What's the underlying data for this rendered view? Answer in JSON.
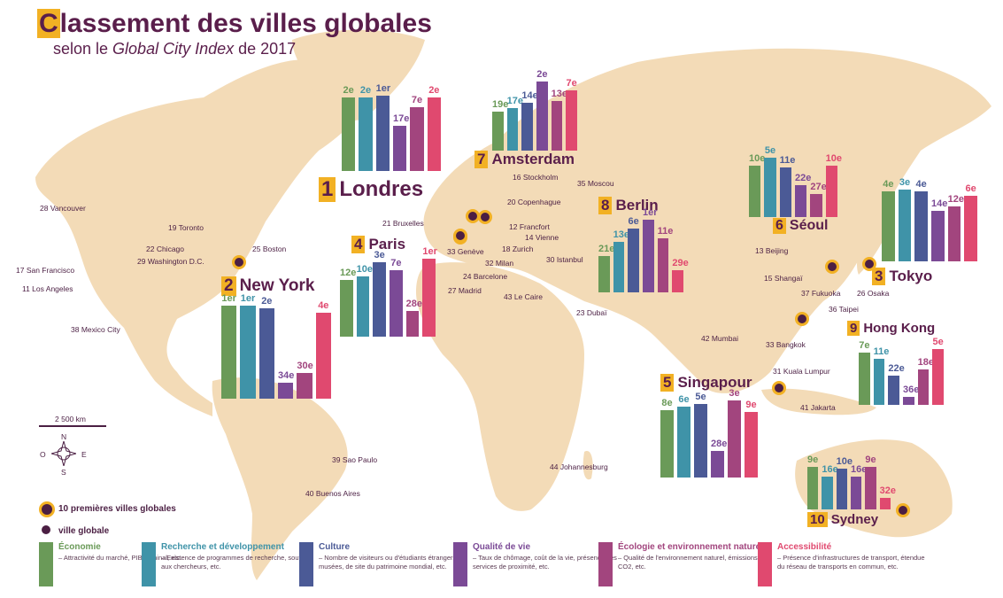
{
  "title": {
    "cap": "C",
    "rest": "lassement des villes globales"
  },
  "subtitle": {
    "pre": "selon le ",
    "italic": "Global City Index",
    "post": " de 2017"
  },
  "colors": {
    "land": "#f3dbb7",
    "sea": "#ffffff",
    "economy": "#6a9a58",
    "research": "#3f93a8",
    "culture": "#4b5a96",
    "quality": "#7b4a96",
    "ecology": "#a2457e",
    "access": "#e0496f",
    "highlight": "#f2b124",
    "dot": "#4b1f43"
  },
  "top_cities": [
    {
      "rank": "1",
      "name": "Londres",
      "ranks": [
        "2e",
        "2e",
        "1er",
        "17e",
        "7e",
        "2e"
      ]
    },
    {
      "rank": "2",
      "name": "New York",
      "ranks": [
        "1er",
        "1er",
        "2e",
        "34e",
        "30e",
        "4e"
      ]
    },
    {
      "rank": "3",
      "name": "Tokyo",
      "ranks": [
        "4e",
        "3e",
        "4e",
        "14e",
        "12e",
        "6e"
      ]
    },
    {
      "rank": "4",
      "name": "Paris",
      "ranks": [
        "12e",
        "10e",
        "3e",
        "7e",
        "28e",
        "1er"
      ]
    },
    {
      "rank": "5",
      "name": "Singapour",
      "ranks": [
        "8e",
        "6e",
        "5e",
        "28e",
        "3e",
        "9e"
      ]
    },
    {
      "rank": "6",
      "name": "Séoul",
      "ranks": [
        "10e",
        "5e",
        "11e",
        "22e",
        "27e",
        "10e"
      ]
    },
    {
      "rank": "7",
      "name": "Amsterdam",
      "ranks": [
        "19e",
        "17e",
        "14e",
        "2e",
        "13e",
        "7e"
      ]
    },
    {
      "rank": "8",
      "name": "Berlin",
      "ranks": [
        "21e",
        "13e",
        "6e",
        "1er",
        "11e",
        "29e"
      ]
    },
    {
      "rank": "9",
      "name": "Hong Kong",
      "ranks": [
        "7e",
        "11e",
        "22e",
        "36e",
        "18e",
        "5e"
      ]
    },
    {
      "rank": "10",
      "name": "Sydney",
      "ranks": [
        "9e",
        "16e",
        "10e",
        "16e",
        "9e",
        "32e"
      ]
    }
  ],
  "other_cities": [
    "28 Vancouver",
    "19 Toronto",
    "22 Chicago",
    "25 Boston",
    "29 Washington D.C.",
    "17 San Francisco",
    "11 Los Angeles",
    "38 Mexico City",
    "39 Sao Paulo",
    "40 Buenos Aires",
    "21 Bruxelles",
    "16 Stockholm",
    "20 Copenhague",
    "35 Moscou",
    "12 Francfort",
    "14 Vienne",
    "18 Zurich",
    "33 Genève",
    "32 Milan",
    "30 Istanbul",
    "24 Barcelone",
    "27 Madrid",
    "43 Le Caire",
    "23 Dubaï",
    "44 Johannesburg",
    "42 Mumbai",
    "33 Bangkok",
    "31 Kuala Lumpur",
    "41 Jakarta",
    "13 Beijing",
    "15 Shangaï",
    "37 Fukuoka",
    "26 Osaka",
    "36 Taipei"
  ],
  "scale": "2 500 km",
  "compass": {
    "n": "N",
    "s": "S",
    "e": "E",
    "o": "O"
  },
  "key": {
    "top10": "10 premières villes globales",
    "global": "ville globale"
  },
  "legend": [
    {
      "title": "Économie",
      "desc": " – Attractivité du marché, PIB nominal, etc."
    },
    {
      "title": "Recherche et développement",
      "desc": " – Existence de programmes de recherche, soutien aux chercheurs, etc."
    },
    {
      "title": "Culture",
      "desc": " – Nombre de visiteurs ou d'étudiants étrangers, de musées, de site du patrimoine mondial, etc."
    },
    {
      "title": "Qualité de vie",
      "desc": " – Taux de chômage, coût de la vie, présence des services de proximité, etc."
    },
    {
      "title": "Écologie et environnement naturel",
      "desc": " – Qualité de l'environnement naturel, émissions de CO2, etc."
    },
    {
      "title": "Accessibilité",
      "desc": " – Présence d'infrastructures de transport, étendue du réseau de transports en commun, etc."
    }
  ]
}
